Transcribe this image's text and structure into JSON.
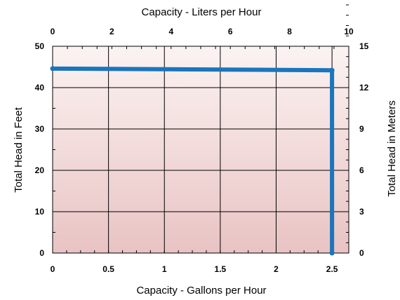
{
  "chart_data": {
    "type": "line",
    "title": "",
    "x_bottom": {
      "label": "Capacity - Gallons per Hour",
      "range": [
        0,
        2.65
      ],
      "ticks": [
        0,
        0.5,
        1,
        1.5,
        2,
        2.5
      ],
      "tick_labels": [
        "0",
        "0.5",
        "1",
        "1.5",
        "2",
        "2.5"
      ]
    },
    "x_top": {
      "label": "Capacity - Liters per Hour",
      "range": [
        0,
        10
      ],
      "ticks": [
        0,
        2,
        4,
        6,
        8,
        10
      ],
      "tick_labels": [
        "0",
        "2",
        "4",
        "6",
        "8",
        "10"
      ]
    },
    "y_left": {
      "label": "Total Head in Feet",
      "range": [
        0,
        50
      ],
      "ticks": [
        0,
        10,
        20,
        30,
        40,
        50
      ],
      "tick_labels": [
        "0",
        "10",
        "20",
        "30",
        "40",
        "50"
      ]
    },
    "y_right": {
      "label": "Total Head in Meters",
      "range": [
        0,
        15
      ],
      "ticks": [
        0,
        3,
        6,
        9,
        12,
        15
      ],
      "tick_labels": [
        "0",
        "3",
        "6",
        "9",
        "12",
        "15"
      ]
    },
    "grid": true,
    "series": [
      {
        "color": "#1a75bc",
        "x": [
          0,
          2.5,
          2.5
        ],
        "y": [
          44.6,
          44.2,
          0
        ]
      }
    ],
    "background_gradient": [
      "#fbf3f2",
      "#e9c3c3"
    ]
  }
}
